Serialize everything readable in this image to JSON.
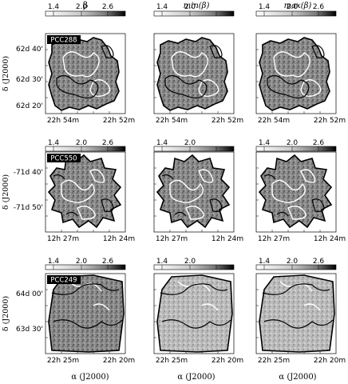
{
  "column_titles": [
    "β",
    "min(β)",
    "max(β)"
  ],
  "colorbar_ticks": [
    [
      "1.4",
      "2.0",
      "2.6"
    ],
    [
      "1.4",
      "2.0",
      ""
    ],
    [
      "1.4",
      "2.0",
      "2.6"
    ]
  ],
  "rows": [
    {
      "label": "PCC288",
      "ylabel": "δ (J2000)",
      "yticks": [
        "62d 40'",
        "62d 30'",
        "62d 20'"
      ],
      "xticks": [
        "22h 54m",
        "22h 52m"
      ]
    },
    {
      "label": "PCC550",
      "ylabel": "δ (J2000)",
      "yticks": [
        "-71d 40'",
        "-71d 50'"
      ],
      "xticks": [
        "12h 27m",
        "12h 24m"
      ]
    },
    {
      "label": "PCC249",
      "ylabel": "δ (J2000)",
      "yticks": [
        "64d 00'",
        "63d 30'"
      ],
      "xticks": [
        "22h 25m",
        "22h 20m"
      ]
    }
  ],
  "xlabel": "α (J2000)",
  "icons": {
    "colorbar": "grayscale-colorbar",
    "map": "dust-spectral-index-map"
  }
}
